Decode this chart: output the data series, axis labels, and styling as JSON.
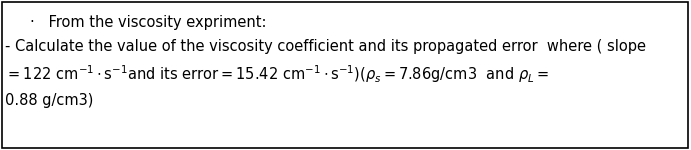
{
  "background_color": "#ffffff",
  "border_color": "#000000",
  "title_line": "·   From the viscosity expriment:",
  "line1": "- Calculate the value of the viscosity coefficient and its propagated error  where ( slope",
  "line2": "=122 cm⁻¹ · s⁻¹and its error = 15.42 cm⁻¹ · s⁻¹) (ρs = 7.86g/cm3  and ρL =",
  "line3": "0.88 g/cm3)",
  "font_size": 10.5,
  "fig_width": 6.91,
  "fig_height": 1.5,
  "dpi": 100
}
